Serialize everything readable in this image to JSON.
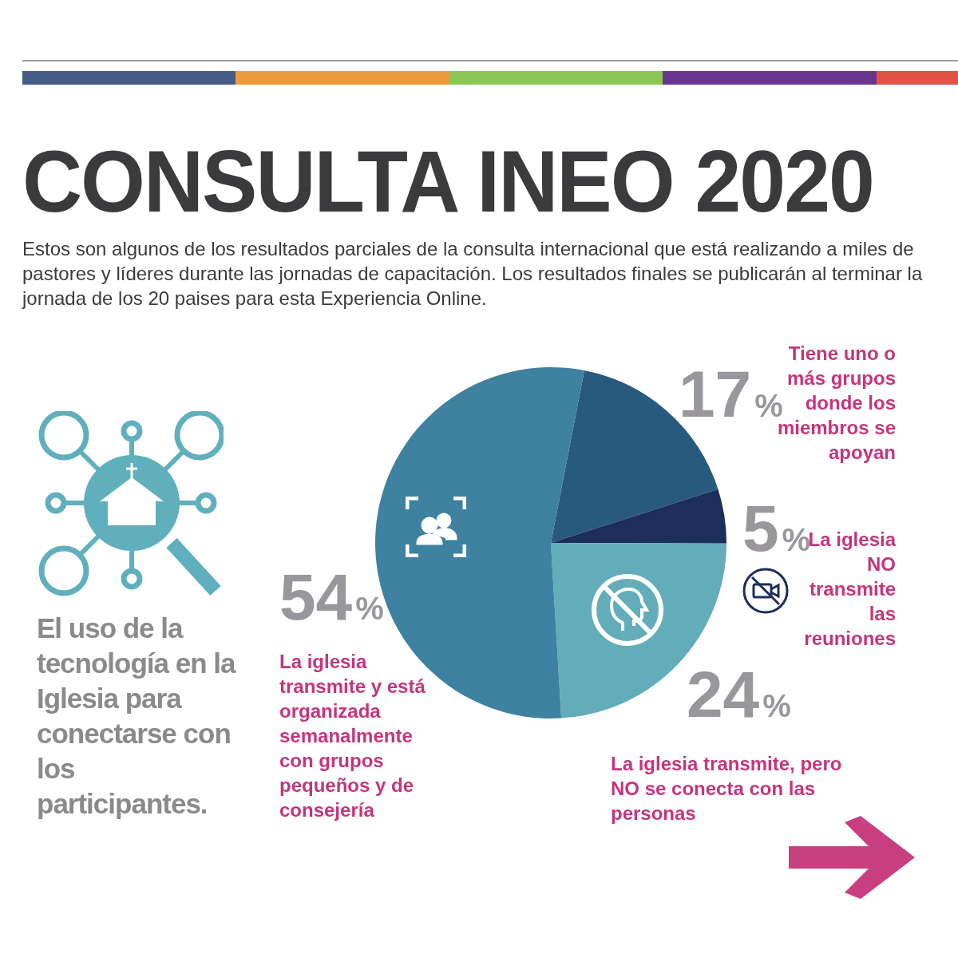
{
  "chart_data": {
    "type": "pie",
    "title": "CONSULTA INEO 2020",
    "subtitle": "Estos son algunos de los resultados parciales de la consulta internacional que está realizando a miles de pastores y líderes durante las jornadas de capacitación. Los resultados finales se publicarán al terminar la jornada de los 20 paises para esta Experiencia Online.",
    "categories": [
      "Tiene uno o más grupos donde los miembros se apoyan",
      "La iglesia NO transmite las reuniones",
      "La iglesia transmite, pero NO se conecta con las personas",
      "La iglesia transmite y está organizada semanalmente con grupos pequeños y de consejería"
    ],
    "values": [
      17,
      5,
      24,
      54
    ],
    "value_labels": [
      "17%",
      "5%",
      "24%",
      "54%"
    ],
    "colors": [
      "#28597f",
      "#1d2d5c",
      "#63adbb",
      "#3e81a1"
    ],
    "annotations": [
      "El uso de la tecnología en la Iglesia para conectarse con los participantes."
    ]
  }
}
